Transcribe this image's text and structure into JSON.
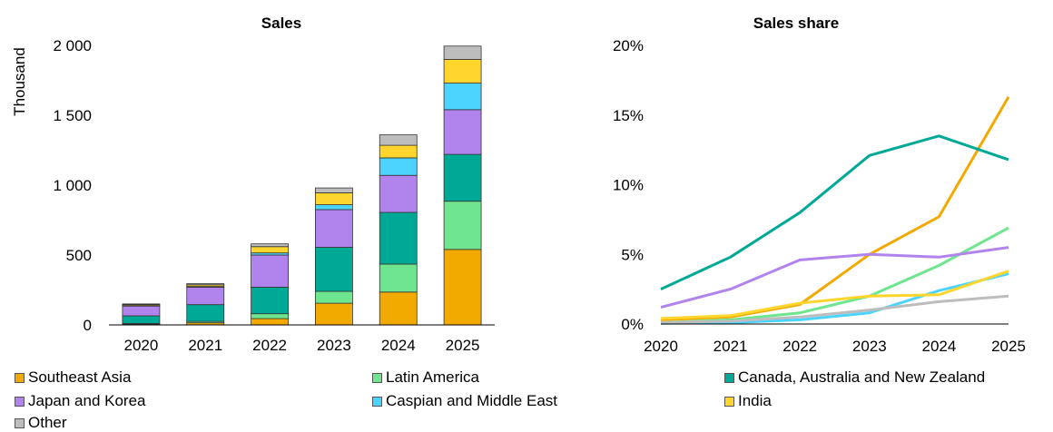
{
  "chart_data": [
    {
      "type": "bar",
      "stacked": true,
      "title": "Sales",
      "ylabel": "Thousand",
      "ylim": [
        0,
        2000
      ],
      "yticks": [
        "0",
        "500",
        "1 000",
        "1 500",
        "2 000"
      ],
      "categories": [
        "2020",
        "2021",
        "2022",
        "2023",
        "2024",
        "2025"
      ],
      "series": [
        {
          "name": "Southeast Asia",
          "color": "#F2A900",
          "values": [
            5,
            15,
            45,
            155,
            235,
            540
          ]
        },
        {
          "name": "Latin America",
          "color": "#6FE58F",
          "values": [
            5,
            10,
            35,
            85,
            200,
            345
          ]
        },
        {
          "name": "Canada, Australia and New Zealand",
          "color": "#00A896",
          "values": [
            55,
            120,
            190,
            315,
            370,
            335
          ]
        },
        {
          "name": "Japan and Korea",
          "color": "#B084EC",
          "values": [
            70,
            125,
            230,
            270,
            265,
            320
          ]
        },
        {
          "name": "Caspian and Middle East",
          "color": "#4CD4FF",
          "values": [
            3,
            5,
            15,
            35,
            125,
            190
          ]
        },
        {
          "name": "India",
          "color": "#FFD52E",
          "values": [
            7,
            12,
            45,
            85,
            90,
            170
          ]
        },
        {
          "name": "Other",
          "color": "#BDBDBD",
          "values": [
            5,
            8,
            20,
            35,
            75,
            95
          ]
        }
      ]
    },
    {
      "type": "line",
      "title": "Sales share",
      "ylim": [
        0,
        20
      ],
      "yticks": [
        "0%",
        "5%",
        "10%",
        "15%",
        "20%"
      ],
      "x": [
        "2020",
        "2021",
        "2022",
        "2023",
        "2024",
        "2025"
      ],
      "series": [
        {
          "name": "Southeast Asia",
          "color": "#F2A900",
          "values": [
            0.3,
            0.5,
            1.4,
            5.0,
            7.7,
            16.3
          ]
        },
        {
          "name": "Latin America",
          "color": "#6FE58F",
          "values": [
            0.1,
            0.3,
            0.8,
            2.0,
            4.2,
            6.9
          ]
        },
        {
          "name": "Canada, Australia and New Zealand",
          "color": "#00A896",
          "values": [
            2.5,
            4.8,
            8.0,
            12.1,
            13.5,
            11.8
          ]
        },
        {
          "name": "Japan and Korea",
          "color": "#B084EC",
          "values": [
            1.2,
            2.5,
            4.6,
            5.0,
            4.8,
            5.5
          ]
        },
        {
          "name": "Caspian and Middle East",
          "color": "#4CD4FF",
          "values": [
            0.05,
            0.1,
            0.3,
            0.8,
            2.4,
            3.6
          ]
        },
        {
          "name": "India",
          "color": "#FFD52E",
          "values": [
            0.4,
            0.6,
            1.5,
            2.0,
            2.1,
            3.8
          ]
        },
        {
          "name": "Other",
          "color": "#BDBDBD",
          "values": [
            0.1,
            0.2,
            0.5,
            1.0,
            1.6,
            2.0
          ]
        }
      ]
    }
  ],
  "legend": [
    {
      "label": "Southeast Asia",
      "color": "#F2A900"
    },
    {
      "label": "Latin America",
      "color": "#6FE58F"
    },
    {
      "label": "Canada, Australia and New Zealand",
      "color": "#00A896"
    },
    {
      "label": "Japan and Korea",
      "color": "#B084EC"
    },
    {
      "label": "Caspian and Middle East",
      "color": "#4CD4FF"
    },
    {
      "label": "India",
      "color": "#FFD52E"
    },
    {
      "label": "Other",
      "color": "#BDBDBD"
    }
  ]
}
